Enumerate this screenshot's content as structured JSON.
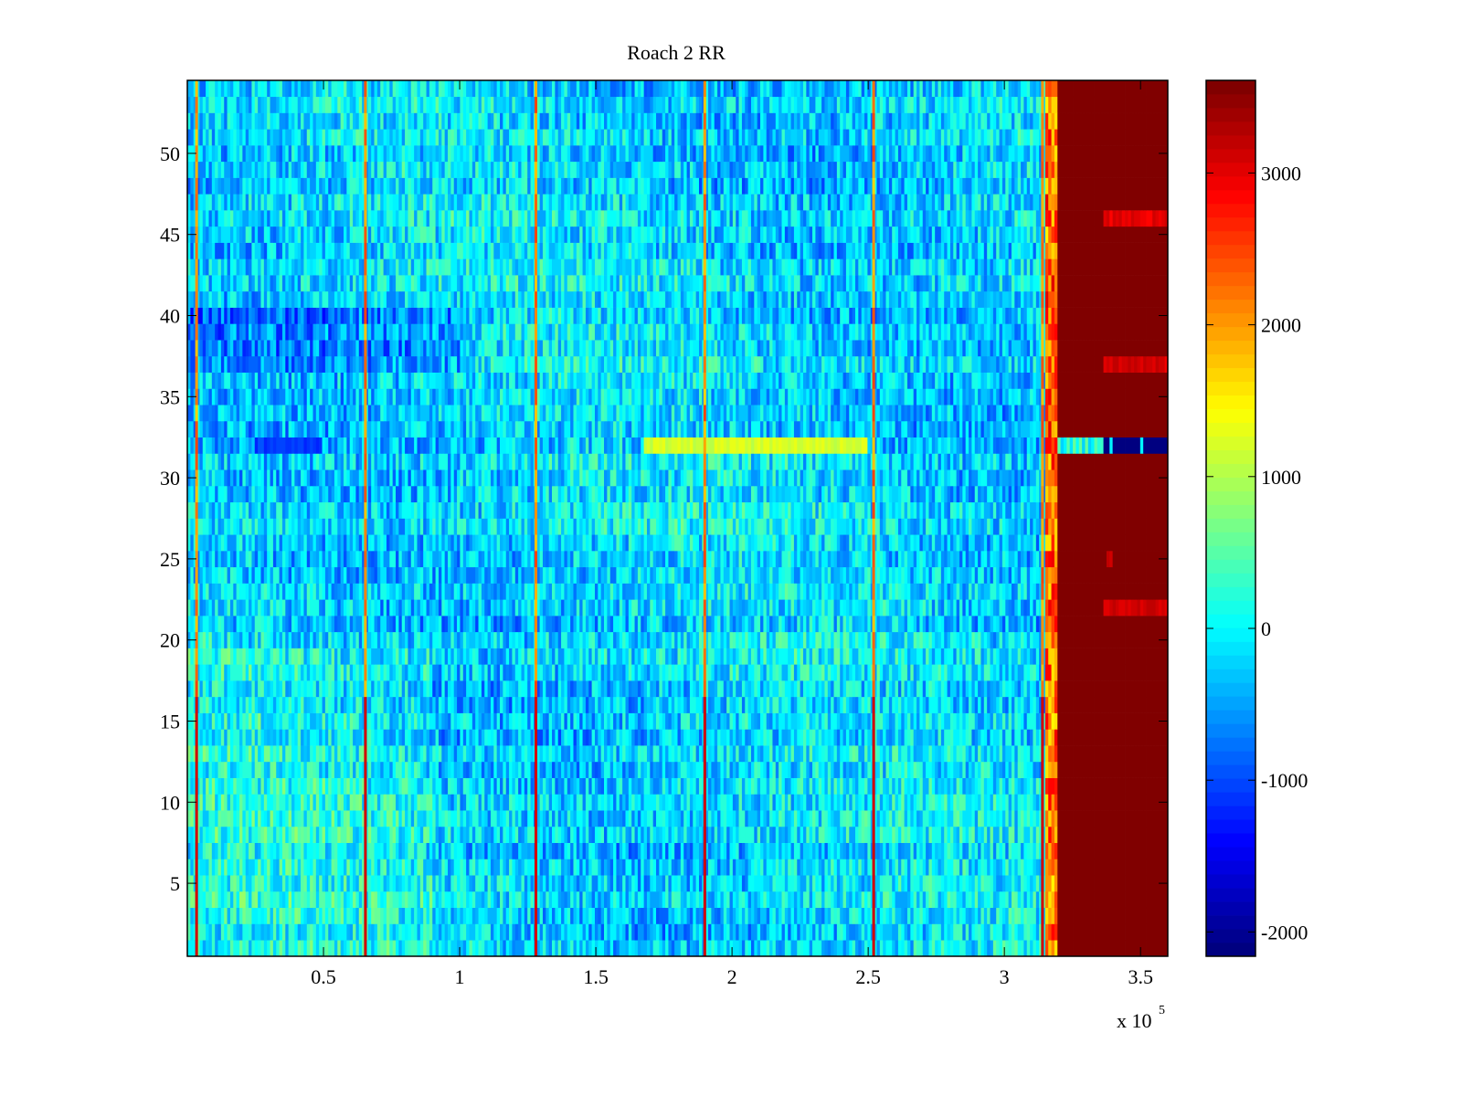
{
  "chart_data": {
    "type": "heatmap",
    "title": "Roach 2 RR",
    "xlabel": "",
    "ylabel": "",
    "x_exponent_label": "x 10",
    "x_exponent": "5",
    "xlim": [
      0,
      360000
    ],
    "ylim": [
      0.5,
      54.5
    ],
    "rows": 54,
    "clim": [
      -2160,
      3610
    ],
    "colormap": "jet",
    "x_ticks": [
      50000,
      100000,
      150000,
      200000,
      250000,
      300000,
      350000
    ],
    "x_tick_labels": [
      "0.5",
      "1",
      "1.5",
      "2",
      "2.5",
      "3",
      "3.5"
    ],
    "y_ticks": [
      5,
      10,
      15,
      20,
      25,
      30,
      35,
      40,
      45,
      50
    ],
    "y_tick_labels": [
      "5",
      "10",
      "15",
      "20",
      "25",
      "30",
      "35",
      "40",
      "45",
      "50"
    ],
    "colorbar_ticks": [
      -2000,
      -1000,
      0,
      1000,
      2000,
      3000
    ],
    "colorbar_tick_labels": [
      "-2000",
      "-1000",
      "0",
      "1000",
      "2000",
      "3000"
    ],
    "background_value_mean": -200,
    "background_value_spread": 600,
    "vertical_spike_x": [
      3400,
      65400,
      128000,
      190000,
      252000,
      314000
    ],
    "spike_value": 2600,
    "saturated_region_x_start": 319500,
    "saturated_value": 3610,
    "anomalous_row": 32,
    "anomalous_row_warm_segment": {
      "x_start": 168000,
      "x_end": 250000,
      "value": 1200
    },
    "anomalous_row_saturated_region_value": -2100,
    "red_patches_in_saturated_region": [
      {
        "row": 46,
        "x_start": 336000,
        "x_end": 360000,
        "value": 3000
      },
      {
        "row": 37,
        "x_start": 336000,
        "x_end": 360000,
        "value": 3100
      },
      {
        "row": 22,
        "x_start": 336000,
        "x_end": 360000,
        "value": 3100
      },
      {
        "row": 25,
        "x_start": 337000,
        "x_end": 340000,
        "value": 3100
      }
    ]
  }
}
